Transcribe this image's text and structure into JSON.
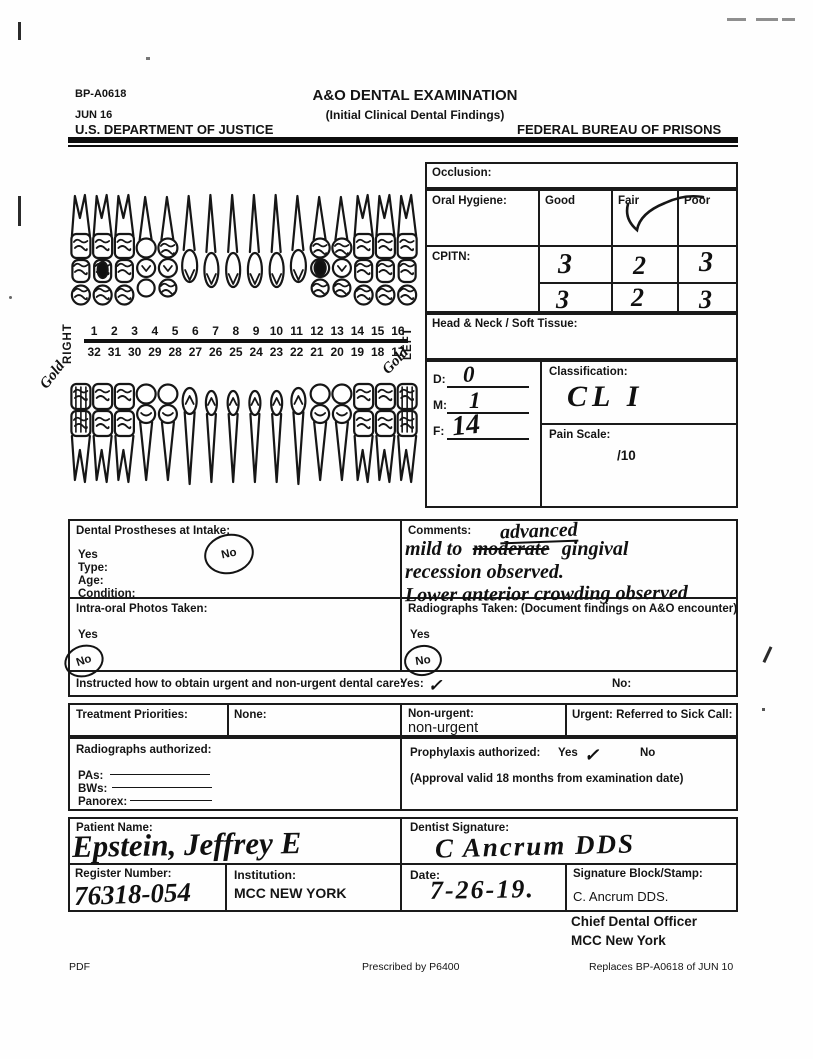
{
  "header": {
    "form_number": "BP-A0618",
    "form_date": "JUN 16",
    "department": "U.S. DEPARTMENT OF JUSTICE",
    "title": "A&O DENTAL EXAMINATION",
    "subtitle": "(Initial Clinical Dental Findings)",
    "agency": "FEDERAL BUREAU OF PRISONS"
  },
  "chart": {
    "right_label": "RIGHT",
    "left_label": "LEFT",
    "upper_numbers": [
      "1",
      "2",
      "3",
      "4",
      "5",
      "6",
      "7",
      "8",
      "9",
      "10",
      "11",
      "12",
      "13",
      "14",
      "15",
      "16"
    ],
    "lower_numbers": [
      "32",
      "31",
      "30",
      "29",
      "28",
      "27",
      "26",
      "25",
      "24",
      "23",
      "22",
      "21",
      "20",
      "19",
      "18",
      "17"
    ],
    "gold_left": "Gold",
    "gold_right": "Gold",
    "marked_upper": [
      "1",
      "2",
      "3",
      "5",
      "12",
      "13",
      "14",
      "15",
      "16"
    ],
    "marked_lower": [
      "32",
      "31",
      "30",
      "19",
      "18",
      "17"
    ]
  },
  "exam": {
    "occlusion_label": "Occlusion:",
    "oral_hygiene": {
      "label": "Oral Hygiene:",
      "good": "Good",
      "fair": "Fair",
      "poor": "Poor",
      "selected": "Fair"
    },
    "cpitn": {
      "label": "CPITN:",
      "row1": [
        "3",
        "2",
        "3"
      ],
      "row2": [
        "3",
        "2",
        "3"
      ]
    },
    "head_neck_label": "Head & Neck / Soft Tissue:",
    "dmf": {
      "d_label": "D:",
      "d_value": "0",
      "m_label": "M:",
      "m_value": "1",
      "f_label": "F:",
      "f_value": "14"
    },
    "classification": {
      "label": "Classification:",
      "value": "CL I"
    },
    "pain": {
      "label": "Pain Scale:",
      "value": "/10"
    }
  },
  "prostheses": {
    "label": "Dental Prostheses at Intake:",
    "yes": "Yes",
    "no": "No",
    "circled": "No",
    "type_label": "Type:",
    "age_label": "Age:",
    "condition_label": "Condition:"
  },
  "comments": {
    "label": "Comments:",
    "inserted": "advanced",
    "line1a": "mild to",
    "struck": "moderate",
    "line1b": "gingival",
    "line2": "recession observed.",
    "line3": "Lower anterior crowding observed"
  },
  "photos": {
    "label": "Intra-oral Photos Taken:",
    "yes": "Yes",
    "no": "No",
    "circled": "No"
  },
  "radiographs_taken": {
    "label": "Radiographs Taken: (Document findings on A&O encounter)",
    "yes": "Yes",
    "no": "No",
    "circled": "No"
  },
  "instructed": {
    "label": "Instructed how to obtain urgent and non-urgent dental care:",
    "yes_label": "Yes:",
    "yes_mark": "✓",
    "no_label": "No:"
  },
  "treatment": {
    "label": "Treatment Priorities:",
    "none_label": "None:",
    "nonurgent_label": "Non-urgent:",
    "nonurgent_value": "non-urgent",
    "urgent_label": "Urgent: Referred to Sick Call:"
  },
  "radiographs_auth": {
    "label": "Radiographs authorized:",
    "pas": "PAs:",
    "bws": "BWs:",
    "panorex": "Panorex:"
  },
  "prophylaxis": {
    "label": "Prophylaxis authorized:",
    "yes": "Yes",
    "mark": "✓",
    "no": "No",
    "note": "(Approval valid 18 months from examination date)"
  },
  "signatures": {
    "patient_label": "Patient Name:",
    "patient_value": "Epstein, Jeffrey E",
    "dentist_label": "Dentist Signature:",
    "dentist_value": "C Ancrum DDS",
    "register_label": "Register Number:",
    "register_value": "76318-054",
    "institution_label": "Institution:",
    "institution_value": "MCC NEW YORK",
    "date_label": "Date:",
    "date_value": "7-26-19.",
    "sigblock_label": "Signature Block/Stamp:",
    "sigblock_name": "C. Ancrum DDS.",
    "sigblock_title": "Chief Dental Officer",
    "sigblock_org": "MCC New York"
  },
  "footer": {
    "left": "PDF",
    "center": "Prescribed by P6400",
    "right": "Replaces BP-A0618 of JUN 10"
  }
}
